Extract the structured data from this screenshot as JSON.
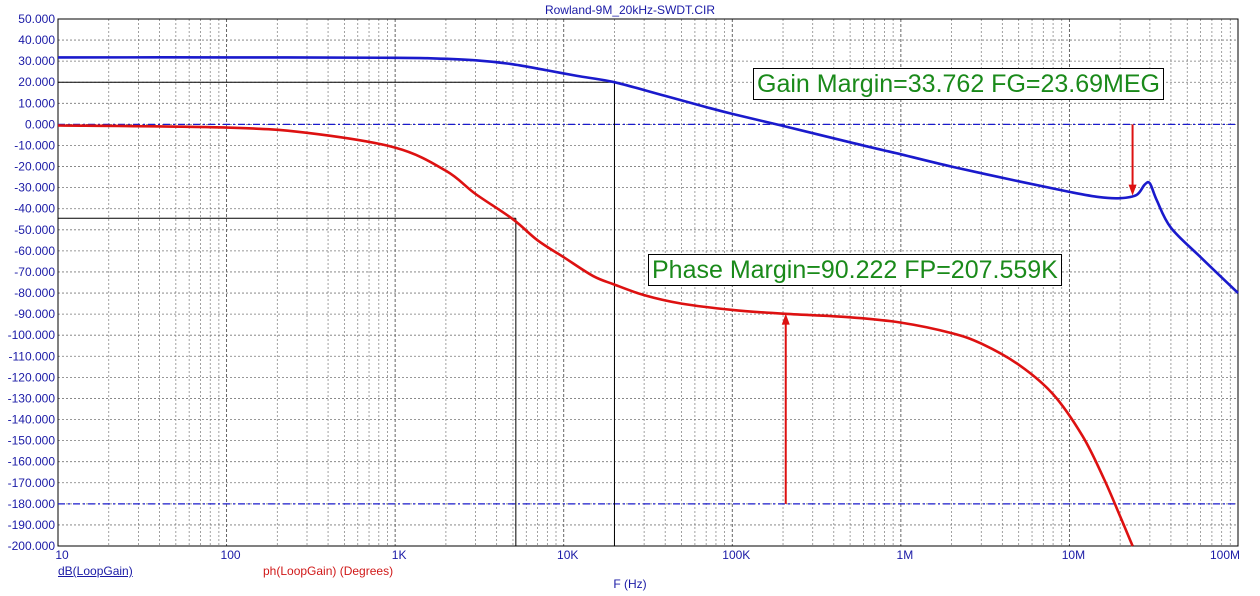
{
  "chart_data": {
    "type": "line",
    "title": "Rowland-9M_20kHz-SWDT.CIR",
    "xlabel": "F (Hz)",
    "x_scale": "log",
    "xlim": [
      10,
      100000000
    ],
    "ylim": [
      -200,
      50
    ],
    "x_ticks": [
      10,
      100,
      1000,
      10000,
      100000,
      1000000,
      10000000,
      100000000
    ],
    "x_tick_labels": [
      "10",
      "100",
      "1K",
      "10K",
      "100K",
      "1M",
      "10M",
      "100M"
    ],
    "y_ticks": [
      50,
      40,
      30,
      20,
      10,
      0,
      -10,
      -20,
      -30,
      -40,
      -50,
      -60,
      -70,
      -80,
      -90,
      -100,
      -110,
      -120,
      -130,
      -140,
      -150,
      -160,
      -170,
      -180,
      -190,
      -200
    ],
    "y_tick_labels": [
      "50.000",
      "40.000",
      "30.000",
      "20.000",
      "10.000",
      "0.000",
      "-10.000",
      "-20.000",
      "-30.000",
      "-40.000",
      "-50.000",
      "-60.000",
      "-70.000",
      "-80.000",
      "-90.000",
      "-100.000",
      "-110.000",
      "-120.000",
      "-130.000",
      "-140.000",
      "-150.000",
      "-160.000",
      "-170.000",
      "-180.000",
      "-190.000",
      "-200.000"
    ],
    "grid": true,
    "reference_lines_y": [
      0,
      -180
    ],
    "series": [
      {
        "name": "dB(LoopGain)",
        "color": "#1a1acc",
        "x": [
          10,
          100,
          1000,
          1700,
          3000,
          5000,
          8000,
          12000,
          20000,
          40000,
          70000,
          100000,
          200000,
          500000,
          1000000,
          2000000,
          5000000,
          10000000,
          15000000,
          20000000,
          25000000,
          28000000,
          30000000,
          33000000,
          40000000,
          60000000,
          100000000
        ],
        "y": [
          31.8,
          31.8,
          31.6,
          31.3,
          30.4,
          28.5,
          25.6,
          23.0,
          20.0,
          13.5,
          8.2,
          5.0,
          -0.7,
          -8.5,
          -14.2,
          -20.0,
          -27.0,
          -32.0,
          -34.5,
          -35.0,
          -33.5,
          -28.5,
          -28.0,
          -36.0,
          -49.0,
          -63.0,
          -80.0
        ]
      },
      {
        "name": "ph(LoopGain) (Degrees)",
        "color": "#dd1111",
        "x": [
          10,
          100,
          300,
          1000,
          2000,
          3000,
          5000,
          7000,
          10000,
          15000,
          20000,
          30000,
          50000,
          100000,
          200000,
          500000,
          1000000,
          2000000,
          3000000,
          5000000,
          8000000,
          12000000,
          16000000,
          20000000,
          23690000
        ],
        "y": [
          -0.5,
          -1.5,
          -4.0,
          -11.0,
          -22.0,
          -33.0,
          -45.0,
          -55.0,
          -63.0,
          -72.0,
          -76.0,
          -81.0,
          -85.0,
          -88.0,
          -89.8,
          -91.5,
          -94.0,
          -99.0,
          -104.0,
          -114.0,
          -128.0,
          -148.0,
          -168.0,
          -186.0,
          -200.0
        ]
      }
    ],
    "annotations": [
      {
        "text": "Gain Margin=33.762 FG=23.69MEG",
        "arrow_x": 23690000,
        "arrow_y_from": 0,
        "arrow_y_to": -33.762
      },
      {
        "text": "Phase Margin=90.222 FP=207.559K",
        "arrow_x": 207559,
        "arrow_y_from": -180,
        "arrow_y_to": -89.778
      }
    ],
    "markers": [
      {
        "x": 20000,
        "y": 20.0
      },
      {
        "x": 5200,
        "y": -44.5
      }
    ],
    "colors": {
      "axis_text": "#1a1aa6",
      "gain": "#1a1acc",
      "phase": "#dd1111",
      "annotation_text": "#1a8a1a",
      "grid": "#808080"
    }
  }
}
